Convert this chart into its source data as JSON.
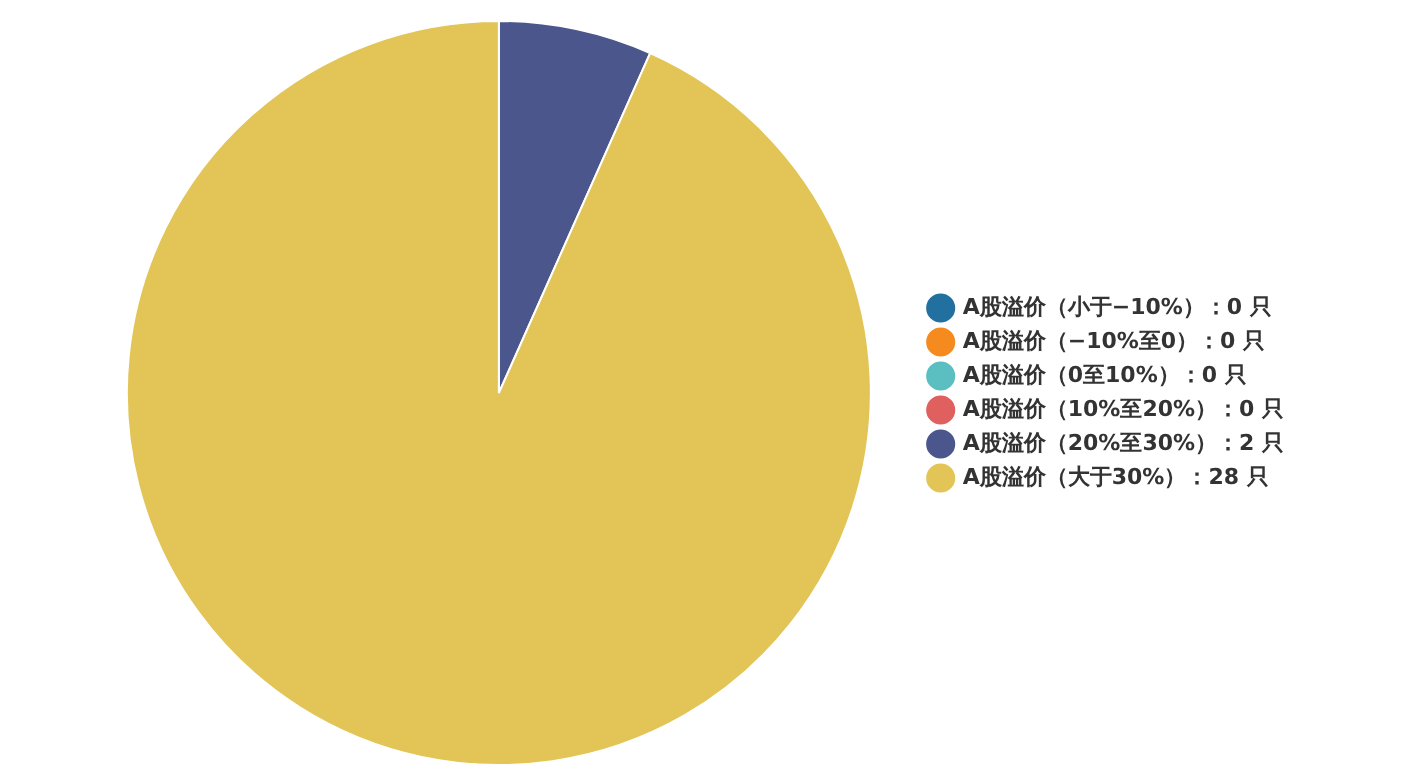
{
  "chart_data": {
    "type": "pie",
    "categories": [
      "A股溢价（小于−10%）：0 只",
      "A股溢价（−10%至0）：0 只",
      "A股溢价（0至10%）：0 只",
      "A股溢价（10%至20%）：0 只",
      "A股溢价（20%至30%）：2 只",
      "A股溢价（大于30%）：28 只"
    ],
    "values": [
      0,
      0,
      0,
      0,
      2,
      28
    ],
    "colors": [
      "#22709f",
      "#f58a1f",
      "#5bbfc1",
      "#e0605f",
      "#4b568c",
      "#e2c556"
    ],
    "legend": "right"
  }
}
